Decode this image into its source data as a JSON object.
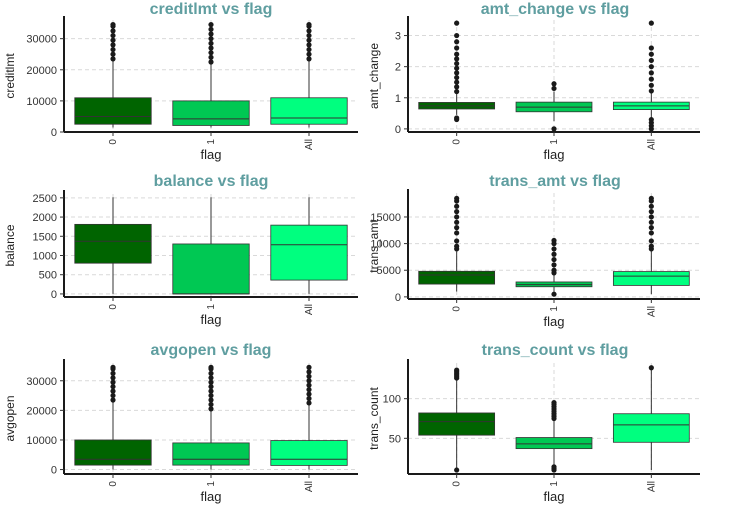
{
  "colors": {
    "0": "#006400",
    "1": "#00c853",
    "All": "#00ff7f",
    "title": "#5f9ea0"
  },
  "chart_data": [
    {
      "type": "box",
      "title": "creditlmt vs flag",
      "xlabel": "flag",
      "ylabel": "creditlmt",
      "categories": [
        "0",
        "1",
        "All"
      ],
      "ylim": [
        0,
        36000
      ],
      "yticks": [
        0,
        10000,
        20000,
        30000
      ],
      "ytick_labels": [
        "0",
        "10000",
        "20000",
        "30000"
      ],
      "grid": true,
      "boxes": [
        {
          "category": "0",
          "whisker_low": 1438,
          "q1": 2500,
          "median": 5000,
          "q3": 11000,
          "whisker_high": 23000,
          "outliers": [
            23500,
            25000,
            26500,
            28000,
            29500,
            31000,
            32500,
            34000,
            34516
          ]
        },
        {
          "category": "1",
          "whisker_low": 1438,
          "q1": 2100,
          "median": 4200,
          "q3": 10000,
          "whisker_high": 22000,
          "outliers": [
            22500,
            24000,
            25500,
            27000,
            28500,
            30000,
            31500,
            33000,
            34516
          ]
        },
        {
          "category": "All",
          "whisker_low": 1438,
          "q1": 2500,
          "median": 4500,
          "q3": 11000,
          "whisker_high": 23000,
          "outliers": [
            23500,
            25000,
            26500,
            28000,
            29500,
            31000,
            32500,
            34000,
            34516
          ]
        }
      ]
    },
    {
      "type": "box",
      "title": "amt_change vs flag",
      "xlabel": "flag",
      "ylabel": "amt_change",
      "categories": [
        "0",
        "1",
        "All"
      ],
      "ylim": [
        -0.1,
        3.5
      ],
      "yticks": [
        0,
        1,
        2,
        3
      ],
      "ytick_labels": [
        "0",
        "1",
        "2",
        "3"
      ],
      "grid": true,
      "boxes": [
        {
          "category": "0",
          "whisker_low": 0.45,
          "q1": 0.64,
          "median": 0.74,
          "q3": 0.85,
          "whisker_high": 1.16,
          "outliers": [
            0.3,
            0.35,
            1.2,
            1.35,
            1.5,
            1.65,
            1.8,
            1.95,
            2.1,
            2.25,
            2.4,
            2.6,
            2.8,
            3.0,
            3.4
          ]
        },
        {
          "category": "1",
          "whisker_low": 0.25,
          "q1": 0.55,
          "median": 0.7,
          "q3": 0.86,
          "whisker_high": 1.2,
          "outliers": [
            0.0,
            1.3,
            1.45
          ]
        },
        {
          "category": "All",
          "whisker_low": 0.35,
          "q1": 0.62,
          "median": 0.74,
          "q3": 0.86,
          "whisker_high": 1.18,
          "outliers": [
            0.0,
            0.1,
            0.2,
            0.3,
            1.22,
            1.4,
            1.6,
            1.8,
            2.0,
            2.2,
            2.4,
            2.6,
            3.4
          ]
        }
      ]
    },
    {
      "type": "box",
      "title": "balance vs flag",
      "xlabel": "flag",
      "ylabel": "balance",
      "categories": [
        "0",
        "1",
        "All"
      ],
      "ylim": [
        -80,
        2600
      ],
      "yticks": [
        0,
        500,
        1000,
        1500,
        2000,
        2500
      ],
      "ytick_labels": [
        "0",
        "500",
        "1000",
        "1500",
        "2000",
        "2500"
      ],
      "grid": true,
      "boxes": [
        {
          "category": "0",
          "whisker_low": 0,
          "q1": 800,
          "median": 1370,
          "q3": 1810,
          "whisker_high": 2517,
          "outliers": []
        },
        {
          "category": "1",
          "whisker_low": 0,
          "q1": 0,
          "median": 0,
          "q3": 1300,
          "whisker_high": 2517,
          "outliers": []
        },
        {
          "category": "All",
          "whisker_low": 0,
          "q1": 360,
          "median": 1280,
          "q3": 1790,
          "whisker_high": 2517,
          "outliers": []
        }
      ]
    },
    {
      "type": "box",
      "title": "trans_amt vs flag",
      "xlabel": "flag",
      "ylabel": "trans_amt",
      "categories": [
        "0",
        "1",
        "All"
      ],
      "ylim": [
        -400,
        19500
      ],
      "yticks": [
        0,
        5000,
        10000,
        15000
      ],
      "ytick_labels": [
        "0",
        "5000",
        "10000",
        "15000"
      ],
      "grid": true,
      "boxes": [
        {
          "category": "0",
          "whisker_low": 1000,
          "q1": 2400,
          "median": 4100,
          "q3": 4800,
          "whisker_high": 8500,
          "outliers": [
            9000,
            9500,
            10500,
            12000,
            13000,
            14000,
            15000,
            16000,
            17000,
            18000,
            18484
          ]
        },
        {
          "category": "1",
          "whisker_low": 510,
          "q1": 1900,
          "median": 2300,
          "q3": 2800,
          "whisker_high": 4200,
          "outliers": [
            500,
            4500,
            5000,
            6000,
            7000,
            8000,
            9000,
            10000,
            10583
          ]
        },
        {
          "category": "All",
          "whisker_low": 510,
          "q1": 2150,
          "median": 3900,
          "q3": 4750,
          "whisker_high": 8600,
          "outliers": [
            9000,
            9500,
            10500,
            12000,
            13000,
            14000,
            15000,
            16000,
            17000,
            18000,
            18484
          ]
        }
      ]
    },
    {
      "type": "box",
      "title": "avgopen vs flag",
      "xlabel": "flag",
      "ylabel": "avgopen",
      "categories": [
        "0",
        "1",
        "All"
      ],
      "ylim": [
        -1500,
        36000
      ],
      "yticks": [
        0,
        10000,
        20000,
        30000
      ],
      "ytick_labels": [
        "0",
        "10000",
        "20000",
        "30000"
      ],
      "grid": true,
      "boxes": [
        {
          "category": "0",
          "whisker_low": 0,
          "q1": 1500,
          "median": 3500,
          "q3": 10000,
          "whisker_high": 23000,
          "outliers": [
            23500,
            25000,
            26500,
            28000,
            29500,
            31000,
            32500,
            34000,
            34516
          ]
        },
        {
          "category": "1",
          "whisker_low": 0,
          "q1": 1500,
          "median": 3500,
          "q3": 9000,
          "whisker_high": 20000,
          "outliers": [
            20500,
            22000,
            23500,
            25000,
            26500,
            28000,
            29500,
            31000,
            32500,
            34000,
            34516
          ]
        },
        {
          "category": "All",
          "whisker_low": 0,
          "q1": 1400,
          "median": 3500,
          "q3": 9800,
          "whisker_high": 22000,
          "outliers": [
            22500,
            24000,
            25500,
            27000,
            28500,
            30000,
            31500,
            33000,
            34516
          ]
        }
      ]
    },
    {
      "type": "box",
      "title": "trans_count vs flag",
      "xlabel": "flag",
      "ylabel": "trans_count",
      "categories": [
        "0",
        "1",
        "All"
      ],
      "ylim": [
        5,
        145
      ],
      "yticks": [
        50,
        100
      ],
      "ytick_labels": [
        "50",
        "100"
      ],
      "grid": true,
      "boxes": [
        {
          "category": "0",
          "whisker_low": 11,
          "q1": 54,
          "median": 71,
          "q3": 82,
          "whisker_high": 124,
          "outliers": [
            10,
            126,
            128,
            130,
            132,
            134,
            136
          ]
        },
        {
          "category": "1",
          "whisker_low": 12,
          "q1": 37,
          "median": 43,
          "q3": 51,
          "whisker_high": 73,
          "outliers": [
            10,
            12,
            14,
            75,
            78,
            81,
            84,
            87,
            90,
            93,
            95
          ]
        },
        {
          "category": "All",
          "whisker_low": 10,
          "q1": 45,
          "median": 67,
          "q3": 81,
          "whisker_high": 139,
          "outliers": [
            139
          ]
        }
      ]
    }
  ]
}
